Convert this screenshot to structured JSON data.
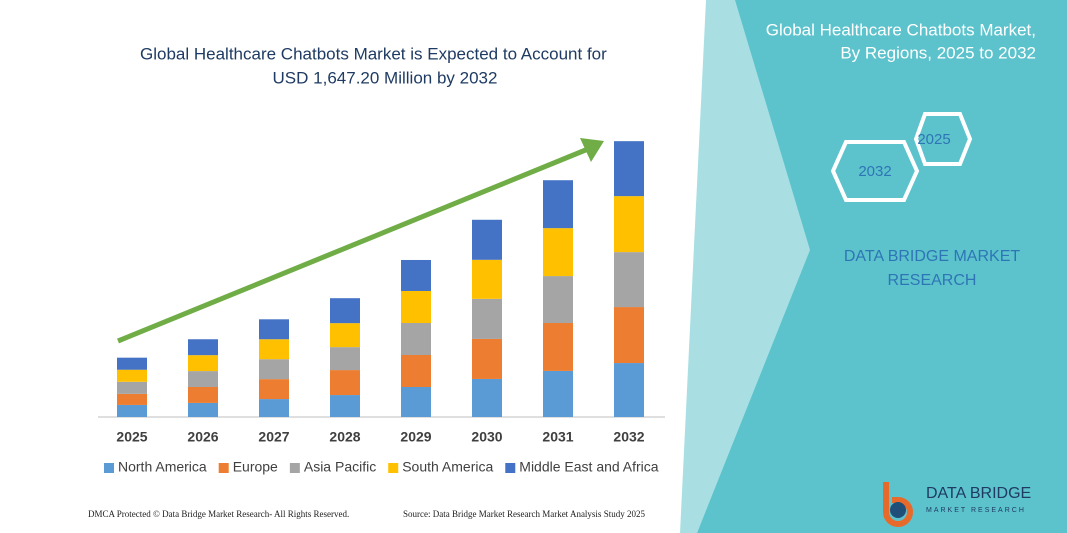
{
  "chart_data": {
    "type": "stacked_bar",
    "title": [
      "Global Healthcare Chatbots Market is Expected to Account for",
      "USD 1,647.20 Million by 2032"
    ],
    "categories": [
      "2025",
      "2026",
      "2027",
      "2028",
      "2029",
      "2030",
      "2031",
      "2032"
    ],
    "series": [
      {
        "name": "North America",
        "color": "#5b9bd5",
        "values": [
          72,
          84,
          107,
          131,
          179,
          227,
          275,
          322
        ]
      },
      {
        "name": "Europe",
        "color": "#ed7d31",
        "values": [
          66,
          95,
          119,
          149,
          191,
          239,
          286,
          334
        ]
      },
      {
        "name": "Asia Pacific",
        "color": "#a5a5a5",
        "values": [
          72,
          95,
          119,
          137,
          191,
          239,
          280,
          328
        ]
      },
      {
        "name": "South America",
        "color": "#ffc000",
        "values": [
          72,
          95,
          119,
          143,
          191,
          233,
          286,
          334
        ]
      },
      {
        "name": "Middle East and Africa",
        "color": "#4472c4",
        "values": [
          72,
          95,
          119,
          149,
          185,
          239,
          286,
          328
        ]
      }
    ],
    "ylim": [
      0,
      1650
    ],
    "legend": "bottom",
    "trend_arrow_color": "#70ad47"
  },
  "panel": {
    "title": [
      "Global Healthcare Chatbots Market,",
      "By Regions, 2025 to 2032"
    ],
    "hex_small": "2025",
    "hex_large": "2032",
    "brand": [
      "DATA BRIDGE MARKET",
      "RESEARCH"
    ]
  },
  "logo": {
    "name": "DATA BRIDGE",
    "tagline": "MARKET RESEARCH"
  },
  "footer": {
    "left": "DMCA Protected © Data Bridge Market Research- All Rights Reserved.",
    "right": "Source: Data Bridge Market Research Market Analysis Study 2025"
  }
}
